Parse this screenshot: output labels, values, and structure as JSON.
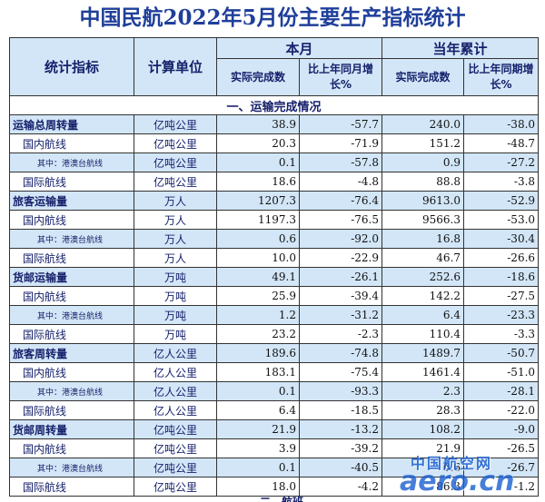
{
  "title": "中国民航2022年5月份主要生产指标统计",
  "header": {
    "indicator": "统计指标",
    "unit": "计算单位",
    "month": "本月",
    "ytd": "当年累计",
    "actual": "实际完成数",
    "yoy_month": "比上年同月增长%",
    "yoy_period": "比上年同期增长%"
  },
  "section_title": "一、运输完成情况",
  "rows": [
    {
      "name": "运输总周转量",
      "unit": "亿吨公里",
      "m": "38.9",
      "mg": "-57.7",
      "y": "240.0",
      "yg": "-38.0"
    },
    {
      "name": "国内航线",
      "unit": "亿吨公里",
      "m": "20.3",
      "mg": "-71.9",
      "y": "151.2",
      "yg": "-48.7"
    },
    {
      "name": "其中：港澳台航线",
      "unit": "亿吨公里",
      "m": "0.1",
      "mg": "-57.8",
      "y": "0.9",
      "yg": "-27.2"
    },
    {
      "name": "国际航线",
      "unit": "亿吨公里",
      "m": "18.6",
      "mg": "-4.8",
      "y": "88.8",
      "yg": "-3.8"
    },
    {
      "name": "旅客运输量",
      "unit": "万人",
      "m": "1207.3",
      "mg": "-76.4",
      "y": "9613.0",
      "yg": "-52.9"
    },
    {
      "name": "国内航线",
      "unit": "万人",
      "m": "1197.3",
      "mg": "-76.5",
      "y": "9566.3",
      "yg": "-53.0"
    },
    {
      "name": "其中：港澳台航线",
      "unit": "万人",
      "m": "0.6",
      "mg": "-92.0",
      "y": "16.8",
      "yg": "-30.4"
    },
    {
      "name": "国际航线",
      "unit": "万人",
      "m": "10.0",
      "mg": "-22.9",
      "y": "46.7",
      "yg": "-26.6"
    },
    {
      "name": "货邮运输量",
      "unit": "万吨",
      "m": "49.1",
      "mg": "-26.1",
      "y": "252.6",
      "yg": "-18.6"
    },
    {
      "name": "国内航线",
      "unit": "万吨",
      "m": "25.9",
      "mg": "-39.4",
      "y": "142.2",
      "yg": "-27.5"
    },
    {
      "name": "其中：港澳台航线",
      "unit": "万吨",
      "m": "1.2",
      "mg": "-31.2",
      "y": "6.4",
      "yg": "-23.3"
    },
    {
      "name": "国际航线",
      "unit": "万吨",
      "m": "23.2",
      "mg": "-2.3",
      "y": "110.4",
      "yg": "-3.3"
    },
    {
      "name": "旅客周转量",
      "unit": "亿人公里",
      "m": "189.6",
      "mg": "-74.8",
      "y": "1489.7",
      "yg": "-50.7"
    },
    {
      "name": "国内航线",
      "unit": "亿人公里",
      "m": "183.1",
      "mg": "-75.4",
      "y": "1461.4",
      "yg": "-51.0"
    },
    {
      "name": "其中：港澳台航线",
      "unit": "亿人公里",
      "m": "0.1",
      "mg": "-93.3",
      "y": "2.3",
      "yg": "-28.1"
    },
    {
      "name": "国际航线",
      "unit": "亿人公里",
      "m": "6.4",
      "mg": "-18.5",
      "y": "28.3",
      "yg": "-22.0"
    },
    {
      "name": "货邮周转量",
      "unit": "亿吨公里",
      "m": "21.9",
      "mg": "-13.2",
      "y": "108.2",
      "yg": "-9.0"
    },
    {
      "name": "国内航线",
      "unit": "亿吨公里",
      "m": "3.9",
      "mg": "-39.2",
      "y": "21.9",
      "yg": "-26.5"
    },
    {
      "name": "其中：港澳台航线",
      "unit": "亿吨公里",
      "m": "0.1",
      "mg": "-40.5",
      "y": "0.6",
      "yg": "-26.7"
    },
    {
      "name": "国际航线",
      "unit": "亿吨公里",
      "m": "18.0",
      "mg": "-4.2",
      "y": "86.3",
      "yg": "-1.2"
    }
  ],
  "bottom_fragment": "二、航班",
  "watermark": {
    "cn": "中国航空网",
    "en": "aero.cn"
  }
}
